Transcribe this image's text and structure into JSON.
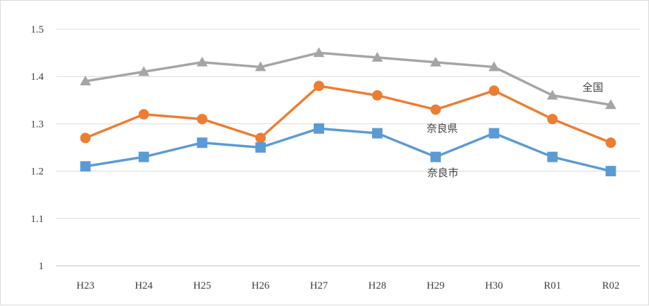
{
  "chart_data": {
    "type": "line",
    "categories": [
      "H23",
      "H24",
      "H25",
      "H26",
      "H27",
      "H28",
      "H29",
      "H30",
      "R01",
      "R02"
    ],
    "ylim": [
      1,
      1.5
    ],
    "yticks": [
      "1",
      "1.1",
      "1.2",
      "1.3",
      "1.4",
      "1.5"
    ],
    "grid": true,
    "series": [
      {
        "name": "全国",
        "color": "#a5a5a5",
        "marker": "triangle",
        "values": [
          1.39,
          1.41,
          1.43,
          1.42,
          1.45,
          1.44,
          1.43,
          1.42,
          1.36,
          1.34
        ]
      },
      {
        "name": "奈良県",
        "color": "#ed7d31",
        "marker": "circle",
        "values": [
          1.27,
          1.32,
          1.31,
          1.27,
          1.38,
          1.36,
          1.33,
          1.37,
          1.31,
          1.26
        ]
      },
      {
        "name": "奈良市",
        "color": "#5b9bd5",
        "marker": "square",
        "values": [
          1.21,
          1.23,
          1.26,
          1.25,
          1.29,
          1.28,
          1.23,
          1.28,
          1.23,
          1.2
        ]
      }
    ]
  }
}
